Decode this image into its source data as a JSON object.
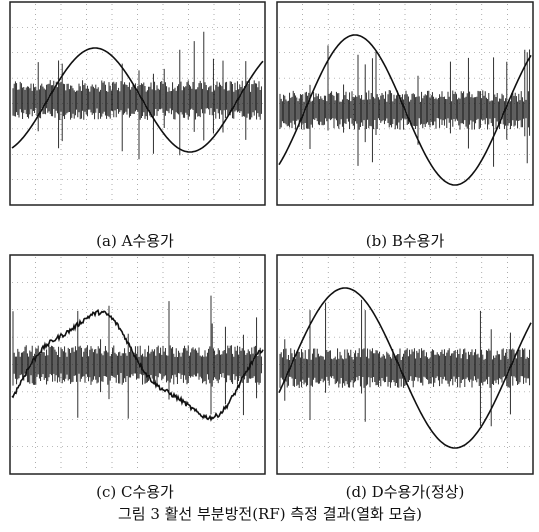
{
  "panels": [
    {
      "caption": "(a) A수용가"
    },
    {
      "caption": "(b) B수용가"
    },
    {
      "caption": "(c) C수용가"
    },
    {
      "caption": "(d) D수용가(정상)"
    }
  ],
  "figure_caption": "그림 3 활선 부분방전(RF) 측정 결과(열화 모습)"
}
